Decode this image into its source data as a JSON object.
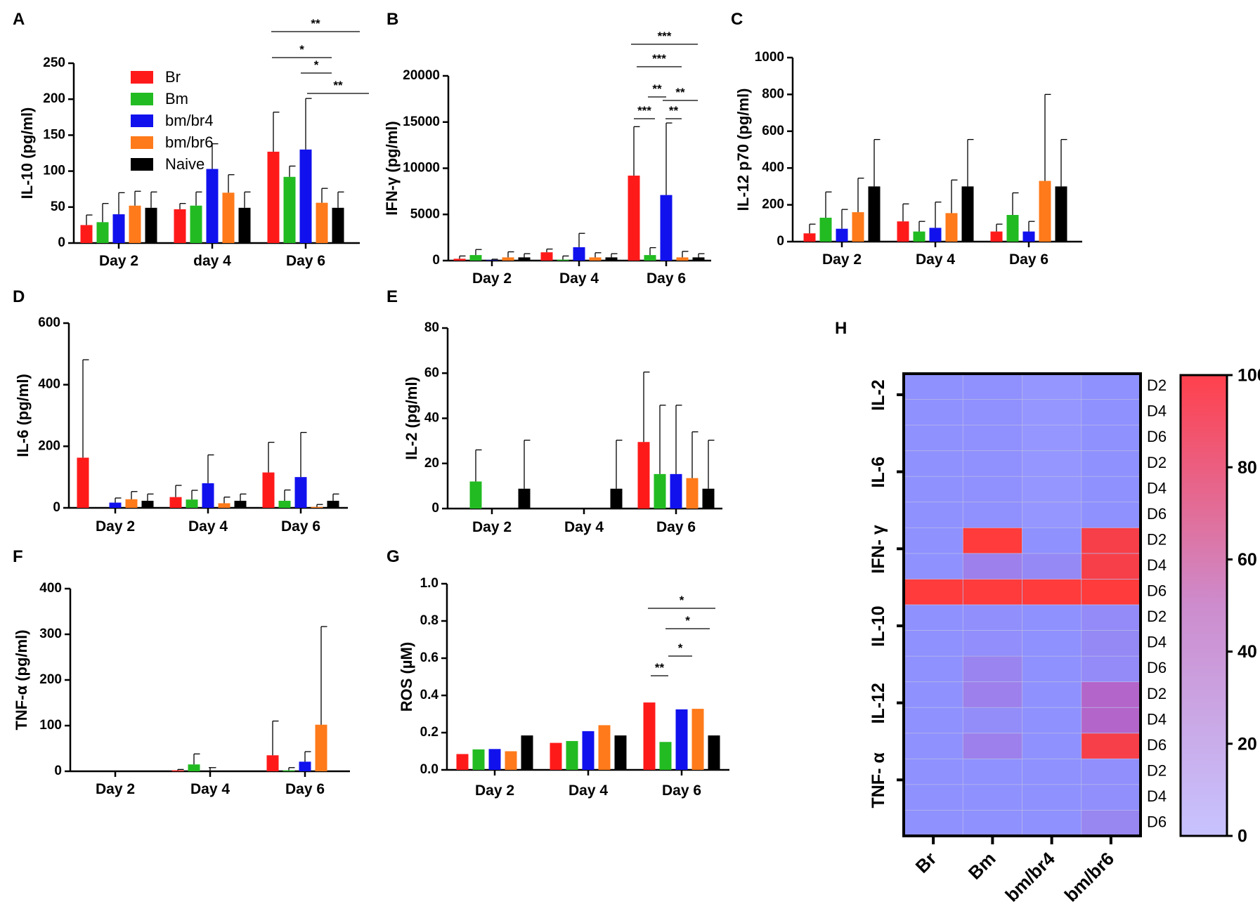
{
  "colors": {
    "Br": "#ff1a1a",
    "Bm": "#22bb22",
    "bm/br4": "#1111ee",
    "bm/br6": "#ff7a1a",
    "Naive": "#000000",
    "heat_low": "#c7c3ff",
    "heat_mid": "#8f91ff",
    "heat_high": "#ff3b3b"
  },
  "legend": [
    "Br",
    "Bm",
    "bm/br4",
    "bm/br6",
    "Naive"
  ],
  "chart_data": [
    {
      "panel": "A",
      "type": "bar",
      "ylabel": "IL-10 (pg/ml)",
      "ylim": [
        0,
        250
      ],
      "yticks": [
        0,
        50,
        100,
        150,
        200,
        250
      ],
      "categories": [
        "Day 2",
        "day 4",
        "Day 6"
      ],
      "series": [
        {
          "name": "Br",
          "values": [
            25,
            47,
            127
          ],
          "err": [
            14,
            8,
            55
          ]
        },
        {
          "name": "Bm",
          "values": [
            29,
            52,
            92
          ],
          "err": [
            26,
            19,
            15
          ]
        },
        {
          "name": "bm/br4",
          "values": [
            40,
            103,
            130
          ],
          "err": [
            30,
            35,
            71
          ]
        },
        {
          "name": "bm/br6",
          "values": [
            52,
            70,
            56
          ],
          "err": [
            20,
            25,
            20
          ]
        },
        {
          "name": "Naive",
          "values": [
            49,
            49,
            49
          ],
          "err": [
            22,
            22,
            22
          ]
        }
      ],
      "sig": [
        {
          "label": "**",
          "cat": 2,
          "from": 0,
          "to": 4,
          "level": 3
        },
        {
          "label": "*",
          "cat": 2,
          "from": 0,
          "to": 3,
          "level": 2
        },
        {
          "label": "*",
          "cat": 2,
          "from": 2,
          "to": 3,
          "level": 1
        },
        {
          "label": "**",
          "cat": 2,
          "from": 2,
          "to": 4,
          "level": 0
        }
      ]
    },
    {
      "panel": "B",
      "type": "bar",
      "ylabel": "IFN-γ (pg/ml)",
      "ylim": [
        0,
        20000
      ],
      "yticks": [
        0,
        5000,
        10000,
        15000,
        20000
      ],
      "categories": [
        "Day 2",
        "Day 4",
        "Day 6"
      ],
      "series": [
        {
          "name": "Br",
          "values": [
            200,
            900,
            9200
          ],
          "err": [
            300,
            350,
            5300
          ]
        },
        {
          "name": "Bm",
          "values": [
            600,
            100,
            600
          ],
          "err": [
            600,
            400,
            800
          ]
        },
        {
          "name": "bm/br4",
          "values": [
            50,
            1450,
            7100
          ],
          "err": [
            100,
            1500,
            7800
          ]
        },
        {
          "name": "bm/br6",
          "values": [
            350,
            350,
            350
          ],
          "err": [
            600,
            500,
            650
          ]
        },
        {
          "name": "Naive",
          "values": [
            350,
            350,
            350
          ],
          "err": [
            400,
            400,
            400
          ]
        }
      ],
      "sig": [
        {
          "label": "***",
          "cat": 2,
          "from": 0,
          "to": 4,
          "level": 4
        },
        {
          "label": "***",
          "cat": 2,
          "from": 0,
          "to": 3,
          "level": 3
        },
        {
          "label": "**",
          "cat": 2,
          "from": 1,
          "to": 2,
          "level": 2
        },
        {
          "label": "**",
          "cat": 2,
          "from": 2,
          "to": 4,
          "level": 1
        },
        {
          "label": "***",
          "cat": 2,
          "from": 0,
          "to": 1,
          "level": 0
        },
        {
          "label": "**",
          "cat": 2,
          "from": 2,
          "to": 3,
          "level": 0
        }
      ]
    },
    {
      "panel": "C",
      "type": "bar",
      "ylabel": "IL-12 p70 (pg/ml)",
      "ylim": [
        0,
        1000
      ],
      "yticks": [
        0,
        200,
        400,
        600,
        800,
        1000
      ],
      "categories": [
        "Day 2",
        "Day 4",
        "Day 6"
      ],
      "series": [
        {
          "name": "Br",
          "values": [
            45,
            110,
            55
          ],
          "err": [
            50,
            95,
            40
          ]
        },
        {
          "name": "Bm",
          "values": [
            130,
            55,
            145
          ],
          "err": [
            140,
            55,
            120
          ]
        },
        {
          "name": "bm/br4",
          "values": [
            70,
            75,
            55
          ],
          "err": [
            105,
            140,
            55
          ]
        },
        {
          "name": "bm/br6",
          "values": [
            160,
            155,
            330
          ],
          "err": [
            185,
            180,
            470
          ]
        },
        {
          "name": "Naive",
          "values": [
            300,
            300,
            300
          ],
          "err": [
            255,
            255,
            255
          ]
        }
      ],
      "sig": []
    },
    {
      "panel": "D",
      "type": "bar",
      "ylabel": "IL-6 (pg/ml)",
      "ylim": [
        0,
        600
      ],
      "yticks": [
        0,
        200,
        400,
        600
      ],
      "categories": [
        "Day 2",
        "Day 4",
        "Day 6"
      ],
      "series": [
        {
          "name": "Br",
          "values": [
            163,
            35,
            115
          ],
          "err": [
            318,
            38,
            98
          ]
        },
        {
          "name": "Bm",
          "values": [
            0,
            27,
            23
          ],
          "err": [
            0,
            30,
            35
          ]
        },
        {
          "name": "bm/br4",
          "values": [
            17,
            80,
            100
          ],
          "err": [
            15,
            92,
            145
          ]
        },
        {
          "name": "bm/br6",
          "values": [
            28,
            15,
            3
          ],
          "err": [
            25,
            20,
            8
          ]
        },
        {
          "name": "Naive",
          "values": [
            23,
            23,
            23
          ],
          "err": [
            22,
            22,
            22
          ]
        }
      ],
      "sig": []
    },
    {
      "panel": "E",
      "type": "bar",
      "ylabel": "IL-2 (pg/ml)",
      "ylim": [
        0,
        80
      ],
      "yticks": [
        0,
        20,
        40,
        60,
        80
      ],
      "categories": [
        "Day 2",
        "Day 4",
        "Day 6"
      ],
      "series": [
        {
          "name": "Br",
          "values": [
            0,
            0,
            29.5
          ],
          "err": [
            0,
            0,
            31
          ]
        },
        {
          "name": "Bm",
          "values": [
            12,
            0,
            15.3
          ],
          "err": [
            14,
            0,
            30.5
          ]
        },
        {
          "name": "bm/br4",
          "values": [
            0,
            0,
            15.3
          ],
          "err": [
            0,
            0,
            30.5
          ]
        },
        {
          "name": "bm/br6",
          "values": [
            0,
            0,
            13.5
          ],
          "err": [
            0,
            0,
            20.5
          ]
        },
        {
          "name": "Naive",
          "values": [
            8.8,
            8.8,
            8.8
          ],
          "err": [
            21.5,
            21.5,
            21.5
          ]
        }
      ],
      "sig": []
    },
    {
      "panel": "F",
      "type": "bar",
      "ylabel": "TNF-α (pg/ml)",
      "ylim": [
        0,
        400
      ],
      "yticks": [
        0,
        100,
        200,
        300,
        400
      ],
      "categories": [
        "Day 2",
        "Day 4",
        "Day 6"
      ],
      "series": [
        {
          "name": "Br",
          "values": [
            0,
            2,
            35
          ],
          "err": [
            0,
            2,
            75
          ]
        },
        {
          "name": "Bm",
          "values": [
            0,
            15,
            2
          ],
          "err": [
            0,
            23,
            6
          ]
        },
        {
          "name": "bm/br4",
          "values": [
            0,
            0,
            21
          ],
          "err": [
            0,
            0,
            22
          ]
        },
        {
          "name": "bm/br6",
          "values": [
            0,
            0,
            102
          ],
          "err": [
            0,
            0,
            215
          ]
        },
        {
          "name": "Naive",
          "values": [
            0,
            0,
            0
          ],
          "err": [
            0,
            0,
            0
          ]
        }
      ],
      "extra_caps": [
        {
          "cat": 1,
          "slot": 2,
          "value": 8
        }
      ],
      "sig": []
    },
    {
      "panel": "G",
      "type": "bar",
      "ylabel": "ROS (µM)",
      "ylim": [
        0,
        1.0
      ],
      "yticks": [
        "0.0",
        "0.2",
        "0.4",
        "0.6",
        "0.8",
        "1.0"
      ],
      "categories": [
        "Day 2",
        "Day 4",
        "Day 6"
      ],
      "series": [
        {
          "name": "Br",
          "values": [
            0.085,
            0.145,
            0.362
          ],
          "err": [
            0,
            0,
            0
          ]
        },
        {
          "name": "Bm",
          "values": [
            0.11,
            0.155,
            0.15
          ],
          "err": [
            0,
            0,
            0
          ]
        },
        {
          "name": "bm/br4",
          "values": [
            0.112,
            0.208,
            0.325
          ],
          "err": [
            0,
            0,
            0
          ]
        },
        {
          "name": "bm/br6",
          "values": [
            0.1,
            0.24,
            0.328
          ],
          "err": [
            0,
            0,
            0
          ]
        },
        {
          "name": "Naive",
          "values": [
            0.185,
            0.185,
            0.185
          ],
          "err": [
            0,
            0,
            0
          ]
        }
      ],
      "sig": [
        {
          "label": "*",
          "cat": 2,
          "from": 0,
          "to": 4,
          "level": 3
        },
        {
          "label": "*",
          "cat": 2,
          "from": 2,
          "to": 4,
          "level": 2
        },
        {
          "label": "*",
          "cat": 2,
          "from": 2,
          "to": 3,
          "level": 1
        },
        {
          "label": "**",
          "cat": 2,
          "from": 0,
          "to": 1,
          "level": 0
        }
      ]
    },
    {
      "panel": "H",
      "type": "heatmap",
      "columns": [
        "Br",
        "Bm",
        "bm/br4",
        "bm/br6"
      ],
      "groups": [
        "IL-2",
        "IL-6",
        "IFN- γ",
        "IL-10",
        "IL-12",
        "TNF- α"
      ],
      "row_labels": [
        "D2",
        "D4",
        "D6"
      ],
      "colorbar_ticks": [
        "0",
        "20",
        "40",
        "60",
        "80",
        "100"
      ],
      "vrange": [
        0,
        100
      ],
      "values": [
        [
          10,
          11,
          9,
          10
        ],
        [
          10,
          11,
          9,
          10
        ],
        [
          10,
          11,
          9,
          10
        ],
        [
          10,
          11,
          9,
          10
        ],
        [
          10,
          11,
          9,
          10
        ],
        [
          10,
          11,
          9,
          10
        ],
        [
          10,
          100,
          10,
          95
        ],
        [
          10,
          25,
          17,
          95
        ],
        [
          100,
          100,
          100,
          100
        ],
        [
          10,
          12,
          10,
          15
        ],
        [
          10,
          13,
          10,
          17
        ],
        [
          10,
          22,
          10,
          15
        ],
        [
          10,
          25,
          10,
          50
        ],
        [
          10,
          14,
          10,
          50
        ],
        [
          10,
          25,
          10,
          95
        ],
        [
          10,
          10,
          10,
          12
        ],
        [
          10,
          10,
          10,
          12
        ],
        [
          10,
          10,
          10,
          20
        ]
      ]
    }
  ]
}
